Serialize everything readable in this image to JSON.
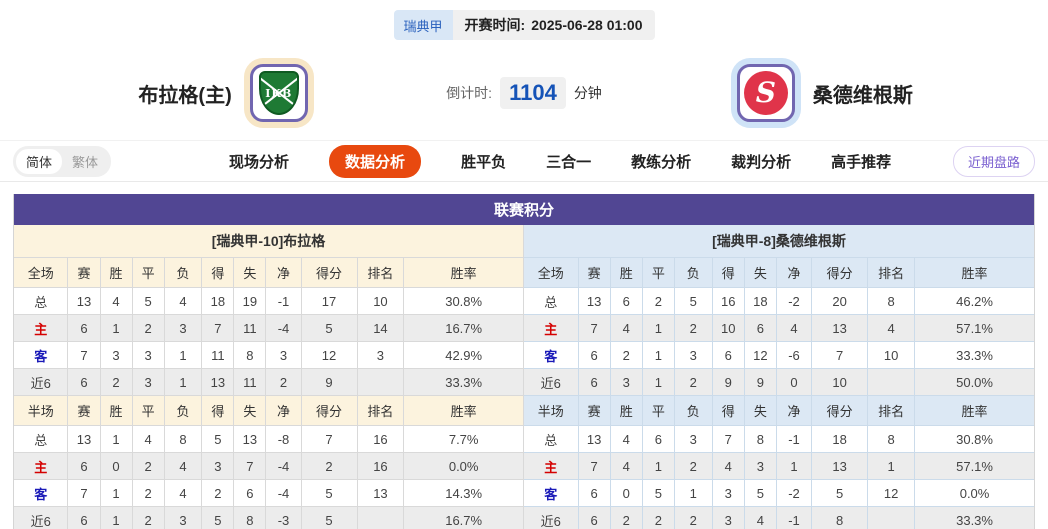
{
  "header": {
    "league_badge": "瑞典甲",
    "kickoff_label": "开赛时间:",
    "kickoff_time": "2025-06-28 01:00",
    "home_team": "布拉格(主)",
    "away_team": "桑德维根斯",
    "home_logo_letters": "IKB",
    "away_logo_letter": "S",
    "countdown_label": "倒计时:",
    "countdown_value": "1104",
    "countdown_unit": "分钟"
  },
  "nav": {
    "lang": [
      "简体",
      "繁体"
    ],
    "tabs": [
      {
        "label": "现场分析",
        "active": false
      },
      {
        "label": "数据分析",
        "active": true
      },
      {
        "label": "胜平负",
        "active": false
      },
      {
        "label": "三合一",
        "active": false
      },
      {
        "label": "教练分析",
        "active": false
      },
      {
        "label": "裁判分析",
        "active": false
      },
      {
        "label": "高手推荐",
        "active": false
      }
    ],
    "recent_button": "近期盘路"
  },
  "standings": {
    "title": "联赛积分",
    "columns_full": [
      "全场",
      "赛",
      "胜",
      "平",
      "负",
      "得",
      "失",
      "净",
      "得分",
      "排名",
      "胜率"
    ],
    "columns_half": [
      "半场",
      "赛",
      "胜",
      "平",
      "负",
      "得",
      "失",
      "净",
      "得分",
      "排名",
      "胜率"
    ],
    "label_colors": {
      "主": "#d40000",
      "客": "#1a1ab8"
    },
    "left": {
      "team_header": "[瑞典甲-10]布拉格",
      "full": [
        [
          "总",
          "13",
          "4",
          "5",
          "4",
          "18",
          "19",
          "-1",
          "17",
          "10",
          "30.8%"
        ],
        [
          "主",
          "6",
          "1",
          "2",
          "3",
          "7",
          "11",
          "-4",
          "5",
          "14",
          "16.7%"
        ],
        [
          "客",
          "7",
          "3",
          "3",
          "1",
          "11",
          "8",
          "3",
          "12",
          "3",
          "42.9%"
        ],
        [
          "近6",
          "6",
          "2",
          "3",
          "1",
          "13",
          "11",
          "2",
          "9",
          "",
          "33.3%"
        ]
      ],
      "half": [
        [
          "总",
          "13",
          "1",
          "4",
          "8",
          "5",
          "13",
          "-8",
          "7",
          "16",
          "7.7%"
        ],
        [
          "主",
          "6",
          "0",
          "2",
          "4",
          "3",
          "7",
          "-4",
          "2",
          "16",
          "0.0%"
        ],
        [
          "客",
          "7",
          "1",
          "2",
          "4",
          "2",
          "6",
          "-4",
          "5",
          "13",
          "14.3%"
        ],
        [
          "近6",
          "6",
          "1",
          "2",
          "3",
          "5",
          "8",
          "-3",
          "5",
          "",
          "16.7%"
        ]
      ]
    },
    "right": {
      "team_header": "[瑞典甲-8]桑德维根斯",
      "full": [
        [
          "总",
          "13",
          "6",
          "2",
          "5",
          "16",
          "18",
          "-2",
          "20",
          "8",
          "46.2%"
        ],
        [
          "主",
          "7",
          "4",
          "1",
          "2",
          "10",
          "6",
          "4",
          "13",
          "4",
          "57.1%"
        ],
        [
          "客",
          "6",
          "2",
          "1",
          "3",
          "6",
          "12",
          "-6",
          "7",
          "10",
          "33.3%"
        ],
        [
          "近6",
          "6",
          "3",
          "1",
          "2",
          "9",
          "9",
          "0",
          "10",
          "",
          "50.0%"
        ]
      ],
      "half": [
        [
          "总",
          "13",
          "4",
          "6",
          "3",
          "7",
          "8",
          "-1",
          "18",
          "8",
          "30.8%"
        ],
        [
          "主",
          "7",
          "4",
          "1",
          "2",
          "4",
          "3",
          "1",
          "13",
          "1",
          "57.1%"
        ],
        [
          "客",
          "6",
          "0",
          "5",
          "1",
          "3",
          "5",
          "-2",
          "5",
          "12",
          "0.0%"
        ],
        [
          "近6",
          "6",
          "2",
          "2",
          "2",
          "3",
          "4",
          "-1",
          "8",
          "",
          "33.3%"
        ]
      ]
    }
  },
  "colors": {
    "title_purple": "#514693",
    "active_tab_orange": "#e8490f",
    "badge_blue": "#2a61bd",
    "countdown_blue": "#1553b7",
    "home_row_red": "#d40000",
    "away_row_blue": "#1a1ab8",
    "left_tint": "#fcf3de",
    "right_tint": "#dce8f4"
  }
}
